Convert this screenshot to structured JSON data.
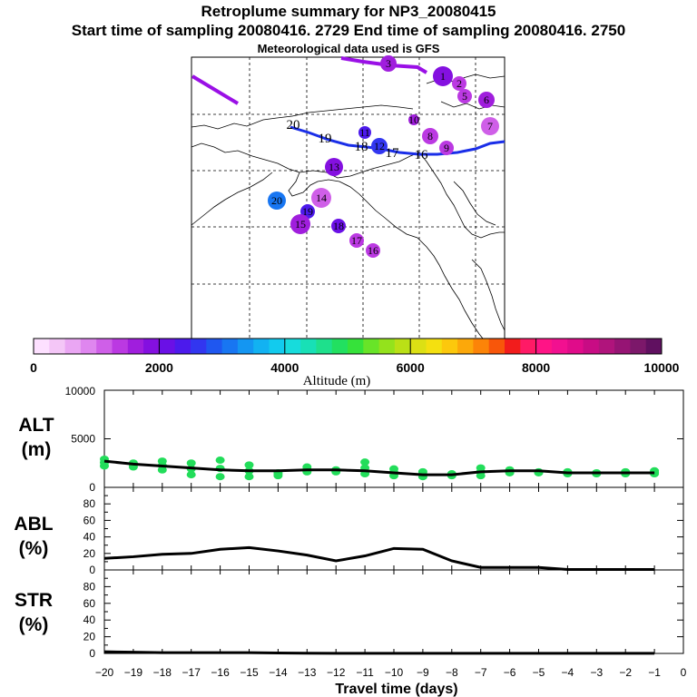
{
  "header": {
    "title": "Retroplume summary for NP3_20080415",
    "subtitle": "Start time of sampling 20080416.  2729     End time of sampling 20080416.  2750",
    "meteo": "Meteorological data used is GFS"
  },
  "colorbar": {
    "ticks": [
      "0",
      "2000",
      "4000",
      "6000",
      "8000",
      "10000"
    ],
    "label": "Altitude (m)",
    "colors": [
      "#fde0ff",
      "#f4c6f7",
      "#eaa6f3",
      "#df86ef",
      "#cf5fe8",
      "#bb39e2",
      "#a01edd",
      "#8410e0",
      "#6a10e6",
      "#4c1aec",
      "#3236f0",
      "#1f57f0",
      "#1876f2",
      "#1496f2",
      "#12b2f2",
      "#12cbee",
      "#17dcdc",
      "#18e0b6",
      "#1ee08c",
      "#22e060",
      "#36e23a",
      "#68e428",
      "#94e21c",
      "#bae016",
      "#dce014",
      "#f4e010",
      "#fcc80c",
      "#fca80a",
      "#fc8408",
      "#f8560a",
      "#f21c1c",
      "#ff1a66",
      "#ff1486",
      "#f21090",
      "#e00c8a",
      "#c80c84",
      "#b0147c",
      "#961474",
      "#7c186a",
      "#601060"
    ]
  },
  "map": {
    "trajectory_labels": [
      "20",
      "19",
      "18",
      "17",
      "16"
    ],
    "dots": [
      {
        "label": "20",
        "alt": 3200
      },
      {
        "label": "19",
        "alt": 2400
      },
      {
        "label": "18",
        "alt": 2100
      },
      {
        "label": "17",
        "alt": 1400
      },
      {
        "label": "16",
        "alt": 1300
      },
      {
        "label": "15",
        "alt": 1500
      },
      {
        "label": "14",
        "alt": 1200
      },
      {
        "label": "13",
        "alt": 1900
      },
      {
        "label": "12",
        "alt": 2600
      },
      {
        "label": "11",
        "alt": 2300
      },
      {
        "label": "10",
        "alt": 1700
      },
      {
        "label": "9",
        "alt": 1300
      },
      {
        "label": "8",
        "alt": 1400
      },
      {
        "label": "7",
        "alt": 1200
      },
      {
        "label": "6",
        "alt": 1500
      },
      {
        "label": "5",
        "alt": 1400
      },
      {
        "label": "3",
        "alt": 1600
      },
      {
        "label": "2",
        "alt": 1400
      },
      {
        "label": "1",
        "alt": 1800
      }
    ]
  },
  "chart_data": [
    {
      "type": "line",
      "panel": "ALT",
      "ylabel": "ALT\n(m)",
      "ylabel_lines": [
        "ALT",
        "(m)"
      ],
      "ylim": [
        0,
        10000
      ],
      "yticks": [
        "10000",
        "5000",
        "0"
      ],
      "x": [
        -20,
        -19,
        -18,
        -17,
        -16,
        -15,
        -14,
        -13,
        -12,
        -11,
        -10,
        -9,
        -8,
        -7,
        -6,
        -5,
        -4,
        -3,
        -2,
        -1
      ],
      "series": [
        {
          "name": "mean altitude",
          "values": [
            2700,
            2400,
            2200,
            2000,
            1800,
            1700,
            1700,
            1800,
            1800,
            1700,
            1500,
            1300,
            1300,
            1600,
            1700,
            1700,
            1500,
            1500,
            1500,
            1500
          ]
        },
        {
          "name": "altitude spread points",
          "values": [
            2900,
            2500,
            2700,
            2500,
            2800,
            2300,
            1500,
            2100,
            1800,
            2600,
            1900,
            1600,
            1200,
            2000,
            1800,
            1600,
            1600,
            1500,
            1600,
            1700
          ]
        },
        {
          "name": "altitude spread points (low)",
          "values": [
            2200,
            2100,
            1800,
            1300,
            1100,
            1100,
            1200,
            1600,
            1600,
            1400,
            1200,
            1100,
            1400,
            1200,
            1500,
            1500,
            1400,
            1400,
            1400,
            1400
          ]
        }
      ]
    },
    {
      "type": "line",
      "panel": "ABL",
      "ylabel_lines": [
        "ABL",
        "(%)"
      ],
      "ylim": [
        0,
        100
      ],
      "yticks": [
        "80",
        "60",
        "40",
        "20",
        "0"
      ],
      "x": [
        -20,
        -19,
        -18,
        -17,
        -16,
        -15,
        -14,
        -13,
        -12,
        -11,
        -10,
        -9,
        -8,
        -7,
        -6,
        -5,
        -4,
        -3,
        -2,
        -1
      ],
      "values": [
        14,
        16,
        19,
        20,
        25,
        27,
        23,
        18,
        11,
        17,
        26,
        25,
        11,
        3,
        3,
        3,
        0.5,
        0.5,
        0.5,
        0.5
      ]
    },
    {
      "type": "line",
      "panel": "STR",
      "ylabel_lines": [
        "STR",
        "(%)"
      ],
      "ylim": [
        0,
        100
      ],
      "yticks": [
        "80",
        "60",
        "40",
        "20",
        "0"
      ],
      "x": [
        -20,
        -19,
        -18,
        -17,
        -16,
        -15,
        -14,
        -13,
        -12,
        -11,
        -10,
        -9,
        -8,
        -7,
        -6,
        -5,
        -4,
        -3,
        -2,
        -1
      ],
      "values": [
        2,
        1.5,
        1,
        1,
        1,
        1,
        0.5,
        0.3,
        0.2,
        0.2,
        0.1,
        0.1,
        0.1,
        0.1,
        0.1,
        0.1,
        0.1,
        0.1,
        0.1,
        0.1
      ]
    }
  ],
  "xaxis": {
    "ticks": [
      "−20",
      "−19",
      "−18",
      "−17",
      "−16",
      "−15",
      "−14",
      "−13",
      "−12",
      "−11",
      "−10",
      "−9",
      "−8",
      "−7",
      "−6",
      "−5",
      "−4",
      "−3",
      "−2",
      "−1",
      "0"
    ],
    "label": "Travel time (days)"
  }
}
